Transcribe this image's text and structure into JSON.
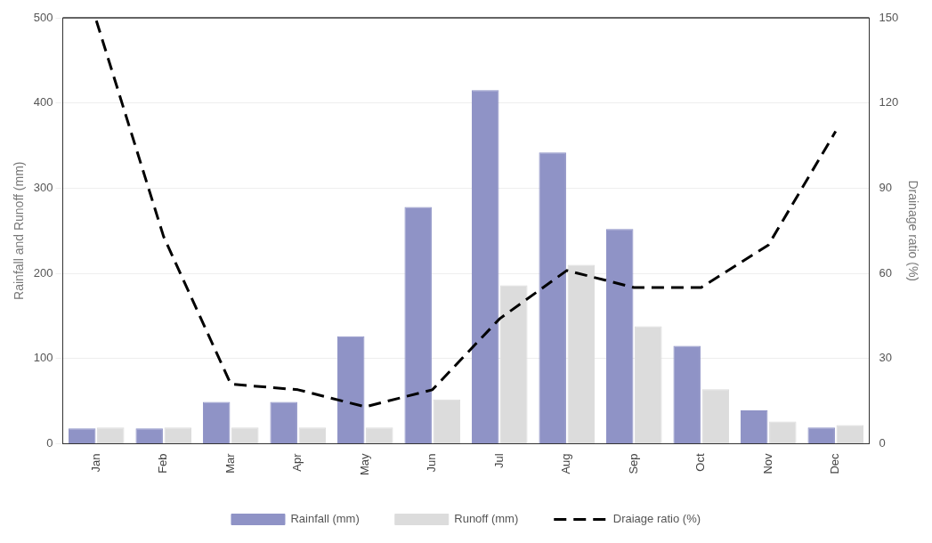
{
  "chart_data": {
    "type": "bar",
    "categories": [
      "Jan",
      "Feb",
      "Mar",
      "Apr",
      "May",
      "Jun",
      "Jul",
      "Aug",
      "Sep",
      "Oct",
      "Nov",
      "Dec"
    ],
    "ylabel": "Rainfall and Runoff (mm)",
    "y2label": "Drainage ratio (%)",
    "ylim": [
      0,
      500
    ],
    "yticks": [
      0,
      100,
      200,
      300,
      400,
      500
    ],
    "y2lim": [
      0,
      150
    ],
    "y2ticks": [
      0,
      30,
      60,
      90,
      120,
      150
    ],
    "grid": "y",
    "legend": "bottom",
    "series": [
      {
        "name": "Rainfall (mm)",
        "color": "#8f93c6",
        "values": [
          18,
          18,
          49,
          49,
          126,
          278,
          415,
          342,
          252,
          115,
          39,
          19
        ]
      },
      {
        "name": "Runoff (mm)",
        "color": "#dcdcdc",
        "values": [
          19,
          19,
          19,
          19,
          19,
          52,
          186,
          210,
          138,
          64,
          26,
          22
        ]
      },
      {
        "name": "Draiage ratio (%)",
        "type": "line",
        "axis": "y2",
        "color": "#000000",
        "line_style": "dashed",
        "marker": "none",
        "values": [
          149,
          73,
          21,
          19,
          13,
          19,
          44,
          61,
          55,
          55,
          70,
          110
        ]
      }
    ]
  }
}
